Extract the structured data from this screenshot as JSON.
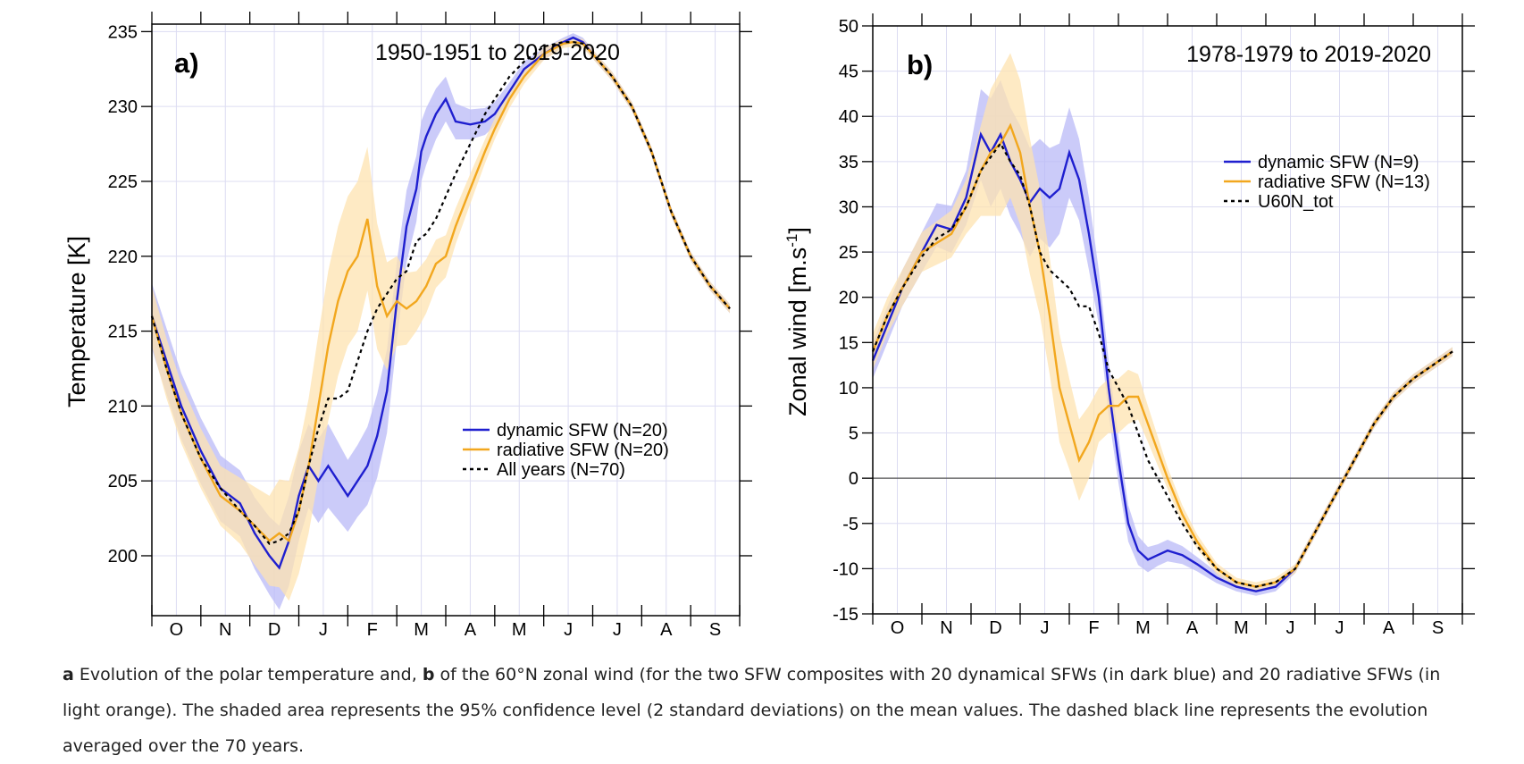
{
  "caption": {
    "a_label": "a",
    "part1": " Evolution of the polar temperature and, ",
    "b_label": "b",
    "part2": " of the 60°N zonal wind (for the two SFW composites with 20 dynamical SFWs (in dark blue) and 20 radiative SFWs (in light orange). The shaded area represents the 95% confidence level (2 standard deviations) on the mean values. The dashed black line represents the evolution averaged over the 70 years."
  },
  "colors": {
    "dynamic": "#1f1fcf",
    "radiative": "#f2a71e",
    "all": "#000000",
    "dynamic_band": "#b9b9f7",
    "radiative_band": "#fde3b0",
    "grid": "#dcdcf2"
  },
  "chart_data": [
    {
      "type": "line",
      "panel_label": "a)",
      "title": "1950-1951 to 2019-2020",
      "xlabel": "",
      "ylabel": "Temperature [K]",
      "ylim": [
        196,
        235.5
      ],
      "yticks": [
        200,
        205,
        210,
        215,
        220,
        225,
        230,
        235
      ],
      "month_labels": [
        "O",
        "N",
        "D",
        "J",
        "F",
        "M",
        "A",
        "M",
        "J",
        "J",
        "A",
        "S"
      ],
      "xlim": [
        0,
        12
      ],
      "legend_position": "center-right",
      "series": [
        {
          "name": "dynamic SFW (N=20)",
          "style": "solid",
          "color": "dynamic",
          "x": [
            0,
            0.3,
            0.6,
            1.0,
            1.4,
            1.8,
            2.1,
            2.4,
            2.6,
            2.8,
            3.0,
            3.2,
            3.4,
            3.6,
            3.8,
            4.0,
            4.2,
            4.4,
            4.6,
            4.8,
            5.0,
            5.2,
            5.4,
            5.5,
            5.6,
            5.8,
            6.0,
            6.2,
            6.5,
            6.8,
            7.0,
            7.3,
            7.6,
            8.0,
            8.4,
            8.6,
            8.8,
            9.0,
            9.4,
            9.8,
            10.2,
            10.6,
            11.0,
            11.4,
            11.8
          ],
          "y": [
            216,
            213,
            210,
            207,
            204.5,
            203.5,
            201.5,
            200,
            199.2,
            201,
            204,
            206,
            205,
            206,
            205,
            204,
            205,
            206,
            208,
            211,
            217,
            222,
            224.5,
            227,
            228,
            229.5,
            230.5,
            229,
            228.8,
            229,
            229.5,
            231,
            232.5,
            233.5,
            234.3,
            234.6,
            234.3,
            233.5,
            232,
            230,
            227,
            223,
            220,
            218,
            216.5
          ],
          "band": [
            2.2,
            2.2,
            2.2,
            2.2,
            2.2,
            2.2,
            2.4,
            2.6,
            2.8,
            3,
            3,
            2.8,
            2.8,
            2.8,
            2.6,
            2.4,
            2.4,
            2.6,
            2.8,
            2.8,
            2.6,
            2.4,
            2.2,
            2,
            1.9,
            1.7,
            1.5,
            1.2,
            1,
            0.9,
            0.8,
            0.6,
            0.5,
            0.4,
            0.3,
            0.3,
            0.3,
            0.3,
            0.3,
            0.3,
            0.3,
            0.3,
            0.3,
            0.3,
            0.3
          ]
        },
        {
          "name": "radiative SFW (N=20)",
          "style": "solid",
          "color": "radiative",
          "x": [
            0,
            0.3,
            0.6,
            1.0,
            1.4,
            1.8,
            2.1,
            2.4,
            2.6,
            2.8,
            3.0,
            3.2,
            3.4,
            3.6,
            3.8,
            4.0,
            4.2,
            4.4,
            4.6,
            4.8,
            5.0,
            5.2,
            5.4,
            5.6,
            5.8,
            6.0,
            6.2,
            6.5,
            6.8,
            7.0,
            7.3,
            7.6,
            8.0,
            8.4,
            8.6,
            8.8,
            9.0,
            9.4,
            9.8,
            10.2,
            10.6,
            11.0,
            11.4,
            11.8
          ],
          "y": [
            216,
            212.5,
            209.5,
            206.5,
            204,
            203,
            202,
            201,
            201.5,
            201,
            203,
            206,
            210,
            214,
            217,
            219,
            220,
            222.5,
            218,
            216,
            217,
            216.5,
            217,
            218,
            219.5,
            220,
            222,
            224.5,
            227,
            228.5,
            230.5,
            232,
            233.5,
            234.2,
            234.3,
            234.2,
            233.5,
            232,
            230,
            227,
            223,
            220,
            218,
            216.5
          ],
          "band": [
            2,
            2,
            2,
            2,
            2,
            2.2,
            2.6,
            3,
            3.6,
            4,
            4.2,
            4.5,
            4.8,
            5,
            5,
            5,
            5,
            4.8,
            4.2,
            3.6,
            3,
            2.4,
            2,
            1.8,
            1.6,
            1.4,
            1.2,
            1,
            0.8,
            0.7,
            0.6,
            0.5,
            0.4,
            0.3,
            0.3,
            0.3,
            0.3,
            0.3,
            0.3,
            0.3,
            0.3,
            0.3,
            0.3,
            0.3
          ]
        },
        {
          "name": "All years (N=70)",
          "style": "dashed",
          "color": "all",
          "x": [
            0,
            0.3,
            0.6,
            1.0,
            1.4,
            1.8,
            2.1,
            2.4,
            2.6,
            2.8,
            3.0,
            3.2,
            3.4,
            3.6,
            3.8,
            4.0,
            4.2,
            4.4,
            4.6,
            4.8,
            5.0,
            5.2,
            5.4,
            5.6,
            5.8,
            6.0,
            6.2,
            6.5,
            6.8,
            7.0,
            7.3,
            7.6,
            8.0,
            8.4,
            8.6,
            8.8,
            9.0,
            9.4,
            9.8,
            10.2,
            10.6,
            11.0,
            11.4,
            11.8
          ],
          "y": [
            216,
            212.5,
            209.5,
            206.5,
            204.5,
            203,
            202,
            200.8,
            201,
            201.5,
            203,
            206,
            208.5,
            210.5,
            210.5,
            211,
            213,
            215,
            216.5,
            217.5,
            218.5,
            219,
            221,
            221.5,
            222.5,
            224,
            225.5,
            227.5,
            229.5,
            230.5,
            232,
            233,
            234,
            234.3,
            234.3,
            234.2,
            233.5,
            232,
            230,
            227,
            223,
            220,
            218,
            216.5
          ]
        }
      ]
    },
    {
      "type": "line",
      "panel_label": "b)",
      "title": "1978-1979 to 2019-2020",
      "xlabel": "",
      "ylabel": "Zonal wind [m.s",
      "ylabel_sup": "-1",
      "ylabel_close": "]",
      "ylim": [
        -15,
        50
      ],
      "yticks": [
        -15,
        -10,
        -5,
        0,
        5,
        10,
        15,
        20,
        25,
        30,
        35,
        40,
        45,
        50
      ],
      "zero_line": 0,
      "month_labels": [
        "O",
        "N",
        "D",
        "J",
        "F",
        "M",
        "A",
        "M",
        "J",
        "J",
        "A",
        "S"
      ],
      "xlim": [
        0,
        12
      ],
      "legend_position": "top-right",
      "series": [
        {
          "name": "dynamic SFW (N=9)",
          "style": "solid",
          "color": "dynamic",
          "x": [
            0,
            0.3,
            0.6,
            1.0,
            1.3,
            1.6,
            1.9,
            2.2,
            2.4,
            2.6,
            2.8,
            3.0,
            3.2,
            3.4,
            3.6,
            3.8,
            4.0,
            4.2,
            4.4,
            4.6,
            4.8,
            5.0,
            5.2,
            5.4,
            5.6,
            5.8,
            6.0,
            6.3,
            6.6,
            7.0,
            7.4,
            7.8,
            8.2,
            8.6,
            9.0,
            9.4,
            9.8,
            10.2,
            10.6,
            11.0,
            11.4,
            11.8
          ],
          "y": [
            13,
            17,
            21,
            25,
            28,
            27.5,
            31,
            38,
            36,
            38,
            35,
            33,
            30.5,
            32,
            31,
            32,
            36,
            33,
            27,
            20,
            10,
            2,
            -5,
            -8,
            -9,
            -8.5,
            -8,
            -8.5,
            -9.5,
            -11,
            -12,
            -12.5,
            -12,
            -10,
            -6,
            -2,
            2,
            6,
            9,
            11,
            12.5,
            14
          ],
          "band": [
            2,
            2,
            2,
            2.2,
            2.4,
            2.6,
            3,
            5,
            6,
            6,
            6,
            6,
            6,
            5.5,
            5.5,
            5,
            5,
            4.5,
            4,
            3,
            3,
            2.5,
            2,
            1.6,
            1.4,
            1.2,
            1.2,
            1,
            0.8,
            0.6,
            0.5,
            0.5,
            0.5,
            0.5,
            0.5,
            0.5,
            0.5,
            0.5,
            0.5,
            0.5,
            0.5,
            0.5
          ]
        },
        {
          "name": "radiative SFW (N=13)",
          "style": "solid",
          "color": "radiative",
          "x": [
            0,
            0.3,
            0.6,
            1.0,
            1.3,
            1.6,
            1.9,
            2.2,
            2.4,
            2.6,
            2.8,
            3.0,
            3.2,
            3.4,
            3.6,
            3.8,
            4.0,
            4.2,
            4.4,
            4.6,
            4.8,
            5.0,
            5.2,
            5.4,
            5.6,
            5.8,
            6.0,
            6.3,
            6.6,
            7.0,
            7.4,
            7.8,
            8.2,
            8.6,
            9.0,
            9.4,
            9.8,
            10.2,
            10.6,
            11.0,
            11.4,
            11.8
          ],
          "y": [
            14,
            18,
            21,
            25,
            26,
            27,
            30,
            34,
            36,
            37,
            39,
            36,
            30,
            25,
            18,
            10,
            6,
            2,
            4,
            7,
            8,
            8,
            9,
            9,
            6,
            3,
            0,
            -4,
            -7,
            -10,
            -11.5,
            -12,
            -11.5,
            -10,
            -6,
            -2,
            2,
            6,
            9,
            11,
            12.5,
            14
          ],
          "band": [
            2,
            2,
            2,
            2.2,
            2.4,
            2.6,
            3,
            5,
            7,
            8,
            8,
            8,
            7.5,
            7,
            6.5,
            6,
            5,
            4.5,
            4,
            3,
            3,
            3,
            3,
            2.5,
            2,
            1.6,
            1.2,
            1,
            0.8,
            0.6,
            0.5,
            0.5,
            0.5,
            0.5,
            0.5,
            0.5,
            0.5,
            0.5,
            0.5,
            0.5,
            0.5,
            0.5
          ]
        },
        {
          "name": "U60N_tot",
          "style": "dashed",
          "color": "all",
          "x": [
            0,
            0.3,
            0.6,
            1.0,
            1.3,
            1.6,
            1.9,
            2.2,
            2.4,
            2.6,
            2.8,
            3.0,
            3.2,
            3.4,
            3.6,
            3.8,
            4.0,
            4.2,
            4.4,
            4.6,
            4.8,
            5.0,
            5.2,
            5.4,
            5.6,
            5.8,
            6.0,
            6.3,
            6.6,
            7.0,
            7.4,
            7.8,
            8.2,
            8.6,
            9.0,
            9.4,
            9.8,
            10.2,
            10.6,
            11.0,
            11.4,
            11.8
          ],
          "y": [
            14,
            18,
            21,
            24.5,
            26.5,
            27.5,
            30,
            34,
            35.5,
            37,
            35,
            33.5,
            30,
            25,
            23,
            22,
            21,
            19,
            19,
            16,
            12,
            10,
            8,
            5,
            2,
            0,
            -2,
            -5,
            -7.5,
            -10,
            -11.5,
            -12,
            -11.5,
            -10,
            -6,
            -2,
            2,
            6,
            9,
            11,
            12.5,
            14
          ]
        }
      ]
    }
  ]
}
